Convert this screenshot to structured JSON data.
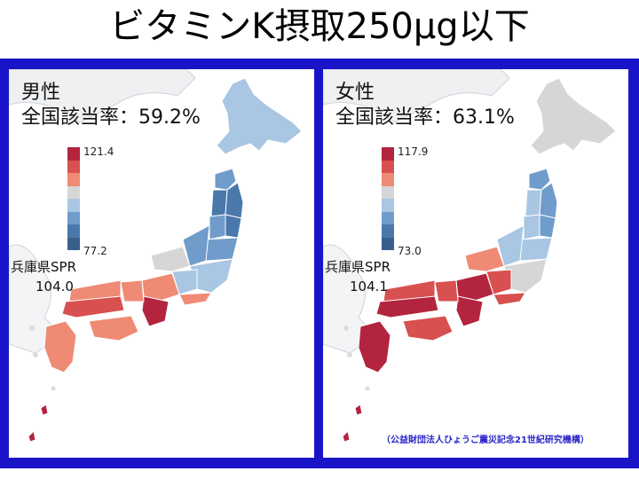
{
  "title": "ビタミンK摂取250μg以下",
  "panels": [
    {
      "sex": "男性",
      "rate_label": "全国該当率",
      "rate_value": "59.2%",
      "legend_max": "121.4",
      "legend_min": "77.2",
      "spr_label": "兵庫県SPR",
      "spr_value": "104.0"
    },
    {
      "sex": "女性",
      "rate_label": "全国該当率",
      "rate_value": "63.1%",
      "legend_max": "117.9",
      "legend_min": "73.0",
      "spr_label": "兵庫県SPR",
      "spr_value": "104.1"
    }
  ],
  "legend_colors": [
    "#b3243e",
    "#d8504f",
    "#ef8a75",
    "#d6d6d6",
    "#a9c6e2",
    "#6f9ccb",
    "#4a78ab",
    "#3a5f8c"
  ],
  "credit": "（公益財団法人ひょうご震災記念21世紀研究機構）",
  "map_colors": {
    "male": {
      "hokkaido": "#a9c6e2",
      "aomori": "#6f9ccb",
      "iwate": "#4a78ab",
      "akita": "#4a78ab",
      "miyagi": "#4a78ab",
      "yamagata": "#6f9ccb",
      "fukushima": "#6f9ccb",
      "kanto": "#a9c6e2",
      "niigata": "#6f9ccb",
      "hokuriku": "#d6d6d6",
      "chubu": "#a9c6e2",
      "tokai": "#ef8a75",
      "kinki": "#ef8a75",
      "hyogo": "#ef8a75",
      "kii": "#b3243e",
      "chugoku": "#d8504f",
      "sanin": "#ef8a75",
      "shikoku": "#ef8a75",
      "kyushu": "#ef8a75",
      "ryukyu": "#b3243e"
    },
    "female": {
      "hokkaido": "#d6d6d6",
      "aomori": "#6f9ccb",
      "iwate": "#6f9ccb",
      "akita": "#a9c6e2",
      "miyagi": "#6f9ccb",
      "yamagata": "#a9c6e2",
      "fukushima": "#a9c6e2",
      "kanto": "#d6d6d6",
      "niigata": "#a9c6e2",
      "hokuriku": "#ef8a75",
      "chubu": "#d8504f",
      "tokai": "#d8504f",
      "kinki": "#b3243e",
      "hyogo": "#d8504f",
      "kii": "#b3243e",
      "chugoku": "#b3243e",
      "sanin": "#d8504f",
      "shikoku": "#d8504f",
      "kyushu": "#b3243e",
      "ryukyu": "#b3243e"
    }
  }
}
